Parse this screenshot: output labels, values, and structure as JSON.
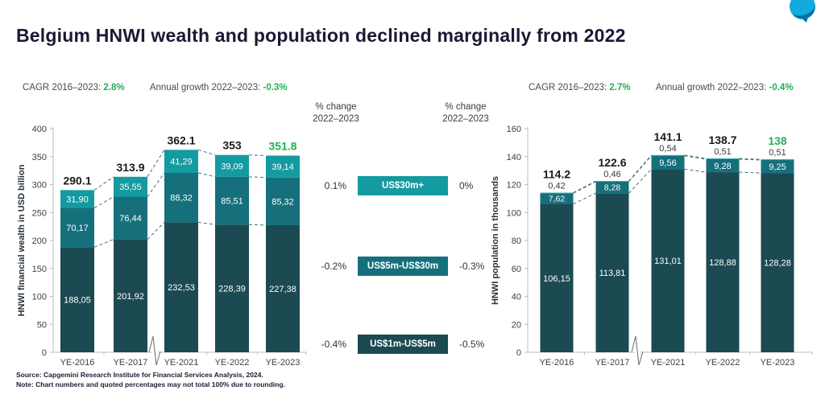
{
  "page": {
    "title": "Belgium HNWI wealth and population declined marginally from 2022",
    "source": "Source: Capgemini Research Institute for Financial Services Analysis, 2024.",
    "note": "Note: Chart numbers and quoted percentages may not total 100% due to rounding."
  },
  "colors": {
    "accent_green": "#1eb254",
    "teal_dark": "#1b4a52",
    "teal_mid": "#15707c",
    "teal_light": "#149aa1",
    "title_navy": "#191935",
    "logo_light_blue": "#12abdb",
    "logo_dark_blue": "#0070ad"
  },
  "legend": {
    "header": {
      "line1": "% change",
      "line2": "2022–2023"
    },
    "rows": [
      {
        "label": "US$30m+",
        "left": "0.1%",
        "right": "0%",
        "color": "#149aa1"
      },
      {
        "label": "US$5m-US$30m",
        "left": "-0.2%",
        "right": "-0.3%",
        "color": "#15707c"
      },
      {
        "label": "US$1m-US$5m",
        "left": "-0.4%",
        "right": "-0.5%",
        "color": "#1b4a52"
      }
    ]
  },
  "chart_data": [
    {
      "id": "wealth",
      "type": "bar",
      "stacked": true,
      "categories": [
        "YE-2016",
        "YE-2017",
        "YE-2021",
        "YE-2022",
        "YE-2023"
      ],
      "series": [
        {
          "name": "US$1m-US$5m",
          "color": "#1b4a52",
          "values": [
            188.05,
            201.92,
            232.53,
            228.39,
            227.38
          ],
          "labels": [
            "188,05",
            "201,92",
            "232,53",
            "228,39",
            "227,38"
          ]
        },
        {
          "name": "US$5m-US$30m",
          "color": "#15707c",
          "values": [
            70.17,
            76.44,
            88.32,
            85.51,
            85.32
          ],
          "labels": [
            "70,17",
            "76,44",
            "88,32",
            "85,51",
            "85,32"
          ]
        },
        {
          "name": "US$30m+",
          "color": "#149aa1",
          "values": [
            31.9,
            35.55,
            41.29,
            39.09,
            39.14
          ],
          "labels": [
            "31,90",
            "35,55",
            "41,29",
            "39,09",
            "39,14"
          ]
        }
      ],
      "totals": [
        "290.1",
        "313.9",
        "362.1",
        "353",
        "351.8"
      ],
      "total_highlight_index": 4,
      "top_labels_outside": false,
      "ylabel": "HNWI financial wealth in USD billion",
      "ylim": [
        0,
        400
      ],
      "ytick_step": 50,
      "grid": false,
      "axis_break_after": "YE-2017",
      "cagr_label": "CAGR 2016–2023:",
      "cagr_value": "2.8%",
      "growth_label": "Annual growth 2022–2023:",
      "growth_value": "-0.3%",
      "pct_change_2022_2023_by_band": {
        "US$30m+": "0.1%",
        "US$5m-US$30m": "-0.2%",
        "US$1m-US$5m": "-0.4%"
      }
    },
    {
      "id": "population",
      "type": "bar",
      "stacked": true,
      "categories": [
        "YE-2016",
        "YE-2017",
        "YE-2021",
        "YE-2022",
        "YE-2023"
      ],
      "series": [
        {
          "name": "US$1m-US$5m",
          "color": "#1b4a52",
          "values": [
            106.15,
            113.81,
            131.01,
            128.88,
            128.28
          ],
          "labels": [
            "106,15",
            "113,81",
            "131,01",
            "128,88",
            "128,28"
          ]
        },
        {
          "name": "US$5m-US$30m",
          "color": "#15707c",
          "values": [
            7.62,
            8.28,
            9.56,
            9.28,
            9.25
          ],
          "labels": [
            "7,62",
            "8,28",
            "9,56",
            "9,28",
            "9,25"
          ]
        },
        {
          "name": "US$30m+",
          "color": "#149aa1",
          "values": [
            0.42,
            0.46,
            0.54,
            0.51,
            0.51
          ],
          "labels": [
            "0,42",
            "0,46",
            "0,54",
            "0,51",
            "0,51"
          ]
        }
      ],
      "totals": [
        "114.2",
        "122.6",
        "141.1",
        "138.7",
        "138"
      ],
      "total_highlight_index": 4,
      "top_labels_outside": true,
      "ylabel": "HNWI population in thousands",
      "ylim": [
        0,
        160
      ],
      "ytick_step": 20,
      "grid": false,
      "axis_break_after": "YE-2017",
      "cagr_label": "CAGR 2016–2023:",
      "cagr_value": "2.7%",
      "growth_label": "Annual growth 2022–2023:",
      "growth_value": "-0.4%",
      "pct_change_2022_2023_by_band": {
        "US$30m+": "0%",
        "US$5m-US$30m": "-0.3%",
        "US$1m-US$5m": "-0.5%"
      }
    }
  ]
}
